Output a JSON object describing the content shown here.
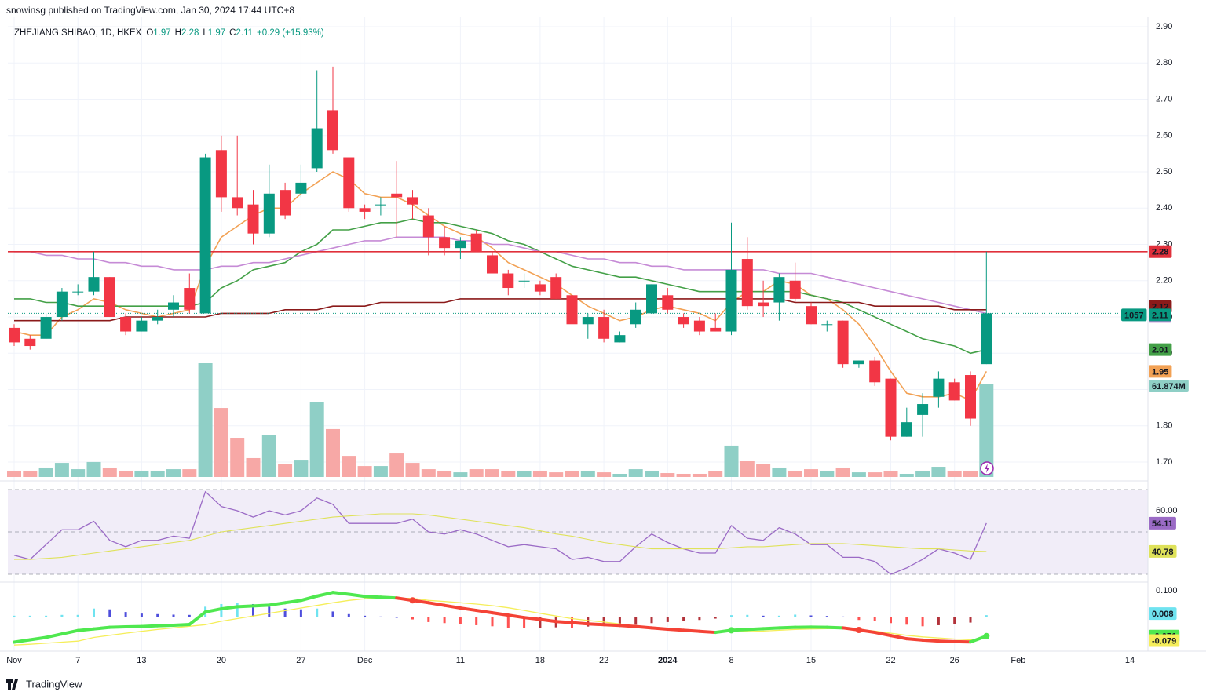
{
  "header": {
    "published": "snowinsg published on TradingView.com, Jan 30, 2024 17:44 UTC+8",
    "footer": "TradingView"
  },
  "chart_data": [
    {
      "type": "candlestick",
      "title": "ZHEJIANG SHIBAO, 1D, HKEX",
      "ohlc_labels": [
        "O",
        "H",
        "L",
        "C"
      ],
      "change": "+0.29 (+15.93%)",
      "countdown": "1057",
      "colors": {
        "up": "#089981",
        "down": "#f23645",
        "volume_up": "#8fcfc6",
        "volume_down": "#f7a8a6",
        "high_line": "#e0303b",
        "last_line": "#089981"
      },
      "grid": true,
      "categories": [
        "Nov",
        null,
        null,
        null,
        "7",
        null,
        null,
        null,
        "13",
        null,
        null,
        null,
        null,
        "20",
        null,
        null,
        null,
        null,
        "27",
        null,
        null,
        null,
        "Dec",
        null,
        null,
        null,
        null,
        null,
        "11",
        null,
        null,
        null,
        null,
        "18",
        null,
        null,
        null,
        "22",
        null,
        null,
        null,
        "2024",
        null,
        null,
        null,
        "8",
        null,
        null,
        null,
        null,
        "15",
        null,
        null,
        null,
        null,
        "22",
        null,
        null,
        null,
        "26",
        null,
        null
      ],
      "future_categories": [
        "Feb",
        "14"
      ],
      "open": [
        2.07,
        2.04,
        2.04,
        2.1,
        2.17,
        2.17,
        2.21,
        2.1,
        2.06,
        2.09,
        2.12,
        2.18,
        2.11,
        2.56,
        2.43,
        2.41,
        2.33,
        2.45,
        2.44,
        2.51,
        2.67,
        2.54,
        2.4,
        2.41,
        2.44,
        2.43,
        2.38,
        2.32,
        2.29,
        2.33,
        2.27,
        2.22,
        2.2,
        2.19,
        2.21,
        2.16,
        2.08,
        2.1,
        2.03,
        2.08,
        2.11,
        2.16,
        2.1,
        2.09,
        2.07,
        2.06,
        2.26,
        2.14,
        2.14,
        2.2,
        2.13,
        2.08,
        2.09,
        1.97,
        1.98,
        1.93,
        1.77,
        1.83,
        1.88,
        1.92,
        1.94,
        1.97
      ],
      "high": [
        2.08,
        2.05,
        2.11,
        2.18,
        2.19,
        2.28,
        2.21,
        2.11,
        2.1,
        2.12,
        2.16,
        2.22,
        2.55,
        2.6,
        2.6,
        2.45,
        2.52,
        2.47,
        2.52,
        2.78,
        2.79,
        2.54,
        2.41,
        2.43,
        2.53,
        2.45,
        2.4,
        2.35,
        2.32,
        2.34,
        2.28,
        2.23,
        2.22,
        2.2,
        2.22,
        2.16,
        2.11,
        2.12,
        2.06,
        2.14,
        2.19,
        2.18,
        2.11,
        2.1,
        2.11,
        2.36,
        2.32,
        2.2,
        2.22,
        2.25,
        2.14,
        2.09,
        2.09,
        1.98,
        1.99,
        1.93,
        1.85,
        1.89,
        1.95,
        1.93,
        1.95,
        2.28
      ],
      "low": [
        2.02,
        2.01,
        2.04,
        2.09,
        2.16,
        2.16,
        2.1,
        2.05,
        2.06,
        2.08,
        2.1,
        2.11,
        2.11,
        2.39,
        2.38,
        2.3,
        2.32,
        2.37,
        2.43,
        2.5,
        2.55,
        2.39,
        2.37,
        2.38,
        2.32,
        2.37,
        2.27,
        2.27,
        2.26,
        2.28,
        2.22,
        2.16,
        2.18,
        2.16,
        2.15,
        2.08,
        2.04,
        2.03,
        2.03,
        2.07,
        2.11,
        2.11,
        2.07,
        2.05,
        2.06,
        2.05,
        2.12,
        2.1,
        2.09,
        2.14,
        2.08,
        2.06,
        1.96,
        1.96,
        1.91,
        1.76,
        1.77,
        1.77,
        1.85,
        1.87,
        1.8,
        1.97
      ],
      "close": [
        2.03,
        2.02,
        2.1,
        2.17,
        2.17,
        2.21,
        2.1,
        2.06,
        2.09,
        2.1,
        2.14,
        2.12,
        2.54,
        2.43,
        2.4,
        2.33,
        2.44,
        2.38,
        2.47,
        2.62,
        2.56,
        2.4,
        2.39,
        2.41,
        2.43,
        2.41,
        2.32,
        2.29,
        2.31,
        2.28,
        2.22,
        2.18,
        2.2,
        2.17,
        2.15,
        2.08,
        2.1,
        2.04,
        2.05,
        2.12,
        2.19,
        2.12,
        2.08,
        2.06,
        2.06,
        2.23,
        2.13,
        2.13,
        2.21,
        2.15,
        2.08,
        2.08,
        1.97,
        1.98,
        1.92,
        1.77,
        1.81,
        1.86,
        1.93,
        1.87,
        1.82,
        2.11
      ],
      "moving_averages": [
        {
          "color": "#f2a154",
          "values": [
            2.06,
            2.05,
            2.05,
            2.1,
            2.12,
            2.15,
            2.14,
            2.12,
            2.11,
            2.1,
            2.11,
            2.12,
            2.24,
            2.32,
            2.35,
            2.38,
            2.4,
            2.4,
            2.44,
            2.47,
            2.5,
            2.48,
            2.44,
            2.43,
            2.43,
            2.41,
            2.38,
            2.35,
            2.33,
            2.32,
            2.29,
            2.25,
            2.23,
            2.21,
            2.19,
            2.16,
            2.13,
            2.11,
            2.09,
            2.1,
            2.12,
            2.13,
            2.12,
            2.11,
            2.09,
            2.14,
            2.17,
            2.17,
            2.2,
            2.19,
            2.16,
            2.15,
            2.12,
            2.08,
            2.02,
            1.95,
            1.89,
            1.88,
            1.88,
            1.89,
            1.87,
            1.95
          ]
        },
        {
          "color": "#43a047",
          "values": [
            2.15,
            2.15,
            2.14,
            2.14,
            2.13,
            2.13,
            2.13,
            2.13,
            2.13,
            2.13,
            2.13,
            2.13,
            2.14,
            2.18,
            2.2,
            2.23,
            2.24,
            2.25,
            2.28,
            2.3,
            2.34,
            2.34,
            2.35,
            2.36,
            2.36,
            2.37,
            2.36,
            2.36,
            2.35,
            2.34,
            2.33,
            2.31,
            2.3,
            2.28,
            2.26,
            2.24,
            2.23,
            2.22,
            2.21,
            2.21,
            2.2,
            2.19,
            2.18,
            2.17,
            2.17,
            2.17,
            2.17,
            2.17,
            2.17,
            2.17,
            2.16,
            2.15,
            2.14,
            2.12,
            2.1,
            2.08,
            2.06,
            2.04,
            2.03,
            2.02,
            2.0,
            2.01
          ]
        },
        {
          "color": "#c68bd6",
          "values": [
            2.28,
            2.28,
            2.27,
            2.27,
            2.26,
            2.26,
            2.25,
            2.25,
            2.24,
            2.24,
            2.23,
            2.23,
            2.23,
            2.24,
            2.24,
            2.25,
            2.25,
            2.26,
            2.27,
            2.28,
            2.29,
            2.3,
            2.31,
            2.31,
            2.32,
            2.32,
            2.32,
            2.32,
            2.31,
            2.31,
            2.3,
            2.3,
            2.29,
            2.28,
            2.28,
            2.27,
            2.26,
            2.26,
            2.25,
            2.25,
            2.24,
            2.24,
            2.23,
            2.23,
            2.23,
            2.23,
            2.23,
            2.23,
            2.22,
            2.22,
            2.22,
            2.21,
            2.2,
            2.19,
            2.18,
            2.17,
            2.16,
            2.15,
            2.14,
            2.13,
            2.12,
            2.11
          ]
        },
        {
          "color": "#8b1a1a",
          "values": [
            2.09,
            2.09,
            2.09,
            2.09,
            2.09,
            2.09,
            2.09,
            2.1,
            2.1,
            2.1,
            2.1,
            2.1,
            2.1,
            2.11,
            2.11,
            2.11,
            2.11,
            2.12,
            2.12,
            2.12,
            2.13,
            2.13,
            2.13,
            2.14,
            2.14,
            2.14,
            2.14,
            2.14,
            2.15,
            2.15,
            2.15,
            2.15,
            2.15,
            2.15,
            2.15,
            2.15,
            2.15,
            2.15,
            2.15,
            2.15,
            2.15,
            2.15,
            2.15,
            2.15,
            2.15,
            2.15,
            2.15,
            2.15,
            2.15,
            2.14,
            2.14,
            2.14,
            2.14,
            2.14,
            2.13,
            2.13,
            2.13,
            2.13,
            2.13,
            2.12,
            2.12,
            2.12
          ]
        }
      ],
      "volume": {
        "values": [
          4.2,
          4.2,
          6.3,
          9.4,
          5.2,
          10,
          6.3,
          4.2,
          4.2,
          4.2,
          5.2,
          5.2,
          76,
          46.1,
          26.2,
          12.6,
          28.3,
          8.4,
          11.5,
          49.8,
          32.0,
          14.1,
          7.3,
          7.3,
          15.7,
          9.4,
          5.2,
          4.2,
          3.1,
          5.2,
          5.2,
          4.2,
          4.2,
          4.2,
          3.1,
          4.2,
          4.2,
          3.1,
          2.1,
          5.2,
          4.2,
          2.6,
          2.1,
          2.1,
          3.7,
          21.0,
          11.0,
          8.9,
          6.3,
          4.2,
          5.2,
          4.2,
          6.3,
          3.1,
          3.1,
          3.7,
          2.1,
          4.2,
          6.8,
          4.2,
          4.2,
          61.874
        ],
        "value_labels": [
          null,
          null,
          null,
          null,
          null,
          null,
          null,
          null,
          null,
          null,
          null,
          null,
          null,
          null,
          null,
          null,
          null,
          null,
          null,
          null,
          null,
          null,
          null,
          null,
          null,
          null,
          null,
          null,
          null,
          null,
          null,
          null,
          null,
          null,
          null,
          null,
          null,
          null,
          null,
          null,
          null,
          null,
          null,
          null,
          null,
          null,
          null,
          null,
          null,
          null,
          null,
          null,
          null,
          null,
          null,
          null,
          null,
          null,
          null,
          null,
          null,
          "61.874M"
        ]
      },
      "ylim": [
        1.659,
        2.926
      ],
      "yticks": [
        {
          "value": 1.7,
          "label": "1.70"
        },
        {
          "value": 1.8,
          "label": "1.80"
        },
        {
          "value": 1.9,
          "label": "1.90"
        },
        {
          "value": 2.0,
          "label": "2.00"
        },
        {
          "value": 2.1,
          "label": "2.10"
        },
        {
          "value": 2.2,
          "label": "2.20"
        },
        {
          "value": 2.3,
          "label": "2.30"
        },
        {
          "value": 2.4,
          "label": "2.40"
        },
        {
          "value": 2.5,
          "label": "2.50"
        },
        {
          "value": 2.6,
          "label": "2.60"
        },
        {
          "value": 2.7,
          "label": "2.70"
        },
        {
          "value": 2.8,
          "label": "2.80"
        },
        {
          "value": 2.9,
          "label": "2.90"
        }
      ]
    },
    {
      "type": "rsi",
      "ylim": [
        26.3,
        73.7
      ],
      "levels": [
        70,
        50,
        30
      ],
      "band_color": "#f1edf8",
      "yticks": [
        {
          "value": 60,
          "label": "60.00"
        }
      ],
      "series": [
        {
          "color": "#9b6bc6",
          "values": [
            39,
            37,
            44,
            51,
            51,
            55,
            46,
            43,
            46,
            46,
            48,
            47,
            69,
            62,
            60,
            57,
            60,
            58,
            60,
            66,
            63,
            54,
            54,
            54,
            54,
            56,
            50,
            49,
            51,
            49,
            46,
            43,
            44,
            43,
            42,
            37,
            38,
            36,
            36,
            43,
            49,
            45,
            42,
            40,
            40,
            53,
            47,
            46,
            52,
            49,
            44,
            44,
            38,
            38,
            36,
            30,
            33,
            37,
            42,
            40,
            37,
            54.11
          ]
        },
        {
          "color": "#dfe25a",
          "values": [
            37,
            37,
            37.5,
            38,
            39,
            40,
            41,
            42,
            43,
            44,
            45,
            46,
            48,
            50,
            51,
            52,
            53,
            54,
            55,
            56,
            57,
            57.5,
            58,
            58.5,
            58.5,
            58.5,
            58,
            57,
            56,
            55,
            54,
            53,
            52,
            50.5,
            49,
            48,
            46.5,
            45,
            44,
            43,
            42,
            42,
            42,
            42,
            42,
            42.5,
            43,
            43,
            43.5,
            44,
            44.5,
            44.5,
            44.5,
            44,
            43.5,
            43,
            42.5,
            42,
            42,
            41.5,
            41,
            40.78
          ]
        }
      ]
    },
    {
      "type": "macd",
      "ylim": [
        -0.128,
        0.133
      ],
      "yticks": [
        {
          "value": 0.1,
          "label": "0.100"
        }
      ],
      "colors": {
        "above": "#4fe84f",
        "below": "#f44336",
        "signal": "#f5ee5a",
        "hist_up_rising": "#6fe3f0",
        "hist_up_falling": "#4e4edc",
        "hist_down_falling": "#ff5252",
        "hist_down_rising": "#b2323a"
      },
      "series": [
        {
          "values": [
            -0.094,
            -0.085,
            -0.076,
            -0.063,
            -0.05,
            -0.044,
            -0.038,
            -0.036,
            -0.035,
            -0.032,
            -0.03,
            -0.027,
            0.02,
            0.032,
            0.04,
            0.043,
            0.046,
            0.055,
            0.064,
            0.08,
            0.094,
            0.087,
            0.079,
            0.076,
            0.073,
            0.064,
            0.055,
            0.045,
            0.035,
            0.026,
            0.017,
            0.008,
            -0.001,
            -0.008,
            -0.016,
            -0.02,
            -0.025,
            -0.028,
            -0.031,
            -0.035,
            -0.04,
            -0.045,
            -0.049,
            -0.053,
            -0.057,
            -0.049,
            -0.046,
            -0.043,
            -0.04,
            -0.038,
            -0.037,
            -0.038,
            -0.04,
            -0.048,
            -0.057,
            -0.069,
            -0.081,
            -0.086,
            -0.09,
            -0.092,
            -0.093,
            -0.071
          ]
        },
        {
          "values": [
            -0.105,
            -0.102,
            -0.098,
            -0.094,
            -0.09,
            -0.076,
            -0.068,
            -0.06,
            -0.053,
            -0.046,
            -0.04,
            -0.034,
            -0.028,
            -0.015,
            -0.005,
            0.005,
            0.015,
            0.025,
            0.035,
            0.045,
            0.055,
            0.064,
            0.07,
            0.072,
            0.072,
            0.072,
            0.064,
            0.06,
            0.055,
            0.05,
            0.044,
            0.036,
            0.026,
            0.015,
            0.005,
            -0.005,
            -0.012,
            -0.018,
            -0.025,
            -0.032,
            -0.038,
            -0.044,
            -0.048,
            -0.051,
            -0.054,
            -0.055,
            -0.054,
            -0.052,
            -0.049,
            -0.046,
            -0.044,
            -0.043,
            -0.043,
            -0.046,
            -0.052,
            -0.06,
            -0.068,
            -0.074,
            -0.078,
            -0.082,
            -0.085,
            -0.079
          ]
        },
        {
          "values": [
            0.006,
            0.006,
            0.006,
            0.009,
            0.009,
            0.033,
            0.03,
            0.02,
            0.014,
            0.012,
            0.01,
            0.009,
            0.04,
            0.05,
            0.055,
            0.05,
            0.04,
            0.033,
            0.03,
            0.033,
            0.022,
            0.012,
            0.006,
            0.003,
            0.001,
            -0.008,
            -0.018,
            -0.022,
            -0.026,
            -0.03,
            -0.034,
            -0.04,
            -0.042,
            -0.04,
            -0.038,
            -0.04,
            -0.035,
            -0.032,
            -0.03,
            -0.028,
            -0.022,
            -0.018,
            -0.014,
            -0.01,
            -0.005,
            0.008,
            0.009,
            0.006,
            0.006,
            0.01,
            0.007,
            0.005,
            0.003,
            -0.01,
            -0.015,
            -0.022,
            -0.028,
            -0.034,
            -0.03,
            -0.025,
            -0.02,
            0.008
          ]
        }
      ]
    }
  ]
}
